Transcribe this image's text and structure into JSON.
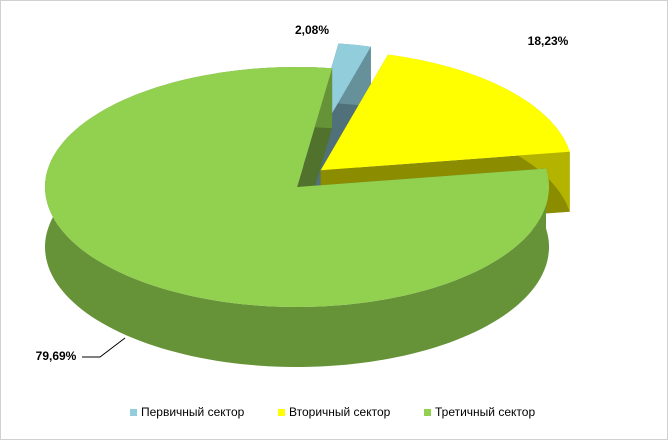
{
  "chart_data": {
    "type": "pie3d",
    "categories": [
      "Первичный сектор",
      "Вторичный сектор",
      "Третичный сектор"
    ],
    "values": [
      2.08,
      18.23,
      79.69
    ],
    "value_labels": [
      "2,08%",
      "18,23%",
      "79,69%"
    ],
    "colors": [
      "#92cddc",
      "#ffff00",
      "#92d050"
    ],
    "legend": "bottom"
  }
}
